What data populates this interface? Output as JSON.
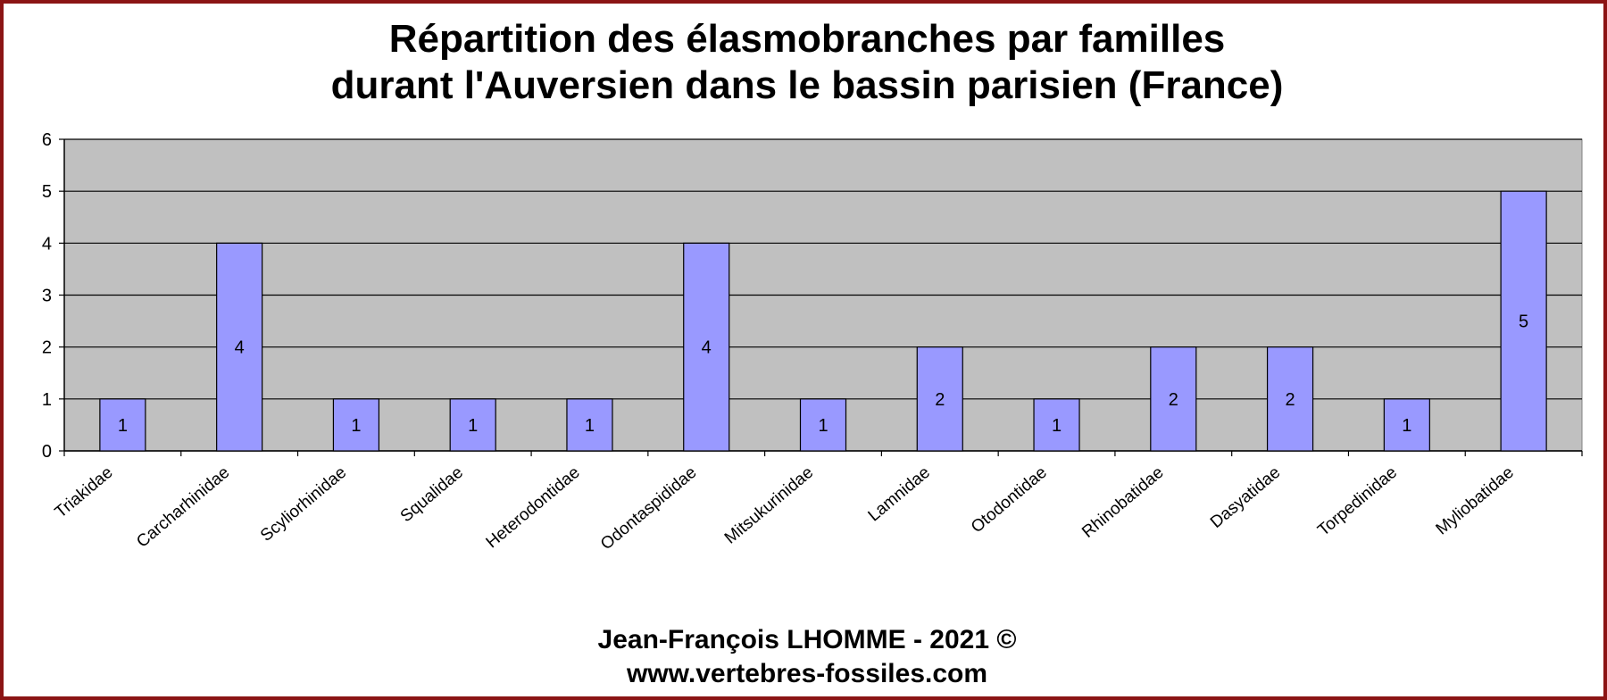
{
  "colors": {
    "frame": "#8b1414",
    "plot_background": "#c0c0c0",
    "bar_fill": "#9999ff",
    "bar_stroke": "#000000",
    "gridline": "#000000"
  },
  "chart_data": {
    "type": "bar",
    "title": "Répartition des élasmobranches par familles durant l'Auversien dans le bassin parisien (France)",
    "title_lines": [
      "Répartition des élasmobranches par familles",
      "durant l'Auversien dans le bassin parisien (France)"
    ],
    "xlabel": "",
    "ylabel": "",
    "categories": [
      "Triakidae",
      "Carcharhinidae",
      "Scyliorhinidae",
      "Squalidae",
      "Heterodontidae",
      "Odontaspididae",
      "Mitsukurinidae",
      "Lamnidae",
      "Otodontidae",
      "Rhinobatidae",
      "Dasyatidae",
      "Torpedinidae",
      "Myliobatidae"
    ],
    "values": [
      1,
      4,
      1,
      1,
      1,
      4,
      1,
      2,
      1,
      2,
      2,
      1,
      5
    ],
    "ylim": [
      0,
      6
    ],
    "yticks": [
      0,
      1,
      2,
      3,
      4,
      5,
      6
    ],
    "grid": true,
    "data_labels": true,
    "legend": "none"
  },
  "footer": {
    "author": "Jean-François LHOMME  -  2021 ©",
    "website": "www.vertebres-fossiles.com"
  }
}
